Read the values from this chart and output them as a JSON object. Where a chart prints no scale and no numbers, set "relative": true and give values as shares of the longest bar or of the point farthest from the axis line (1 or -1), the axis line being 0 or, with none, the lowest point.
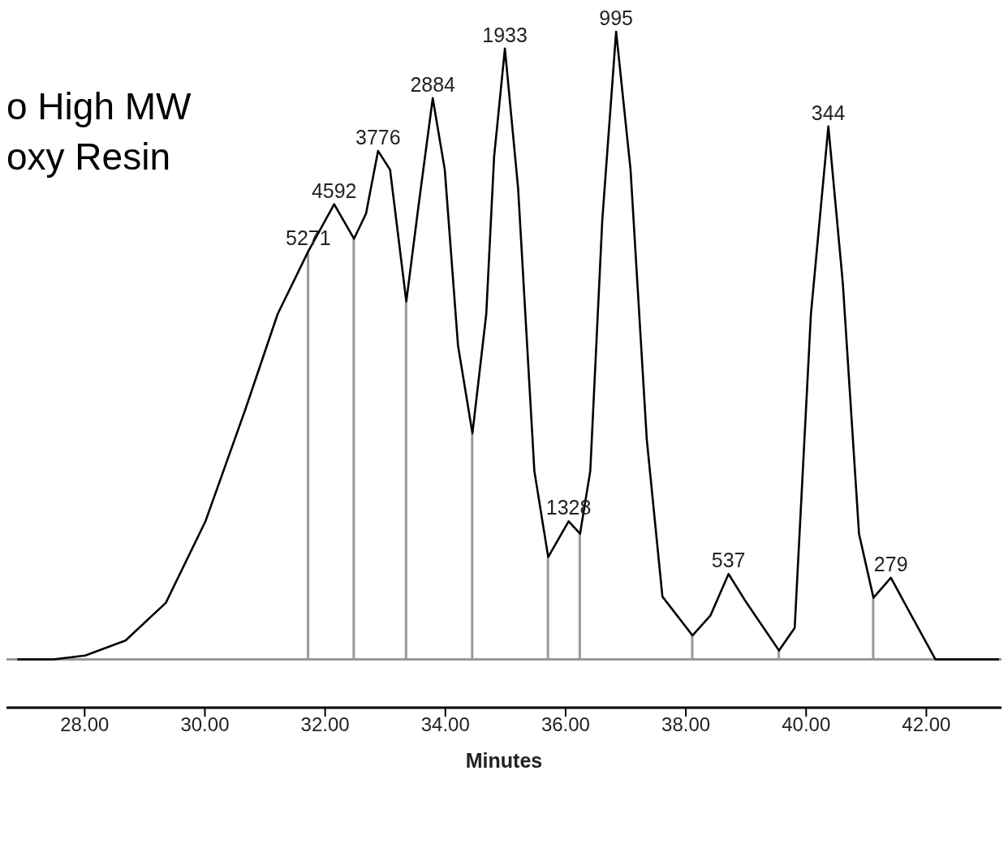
{
  "chart_data": {
    "type": "line",
    "title": "o High MW\noxy Resin",
    "xlabel": "Minutes",
    "relative": true,
    "tick_labels": "x",
    "xlim": [
      26.7,
      43.25
    ],
    "xticks": [
      {
        "value": 28,
        "label": "28.00"
      },
      {
        "value": 30,
        "label": "30.00"
      },
      {
        "value": 32,
        "label": "32.00"
      },
      {
        "value": 34,
        "label": "34.00"
      },
      {
        "value": 36,
        "label": "36.00"
      },
      {
        "value": 38,
        "label": "38.00"
      },
      {
        "value": 40,
        "label": "40.00"
      },
      {
        "value": 42,
        "label": "42.00"
      }
    ],
    "series": [
      {
        "color": "#000000",
        "x": [
          26.88,
          27.48,
          28.01,
          28.68,
          29.35,
          30.01,
          30.68,
          31.21,
          31.72,
          32.15,
          32.48,
          32.68,
          32.88,
          33.08,
          33.35,
          33.55,
          33.79,
          33.99,
          34.21,
          34.45,
          34.68,
          34.81,
          34.99,
          35.21,
          35.48,
          35.71,
          36.05,
          36.24,
          36.41,
          36.61,
          36.84,
          37.08,
          37.35,
          37.61,
          38.11,
          38.41,
          38.71,
          39.01,
          39.55,
          39.81,
          40.08,
          40.37,
          40.61,
          40.88,
          41.12,
          41.41,
          41.75,
          42.15,
          43.21
        ],
        "values": [
          0,
          0,
          0.006,
          0.03,
          0.09,
          0.22,
          0.4,
          0.55,
          0.65,
          0.725,
          0.67,
          0.71,
          0.81,
          0.78,
          0.57,
          0.72,
          0.894,
          0.78,
          0.5,
          0.36,
          0.55,
          0.8,
          0.973,
          0.75,
          0.3,
          0.163,
          0.22,
          0.2,
          0.3,
          0.7,
          1,
          0.78,
          0.35,
          0.1,
          0.038,
          0.07,
          0.136,
          0.09,
          0.014,
          0.05,
          0.55,
          0.849,
          0.6,
          0.2,
          0.098,
          0.13,
          0.07,
          0,
          0
        ]
      },
      {
        "type": "bar",
        "color": "#999999",
        "x": [
          31.72,
          32.48,
          33.35,
          34.45,
          35.71,
          36.24,
          38.11,
          39.55,
          41.12
        ],
        "values": [
          0.65,
          0.67,
          0.57,
          0.36,
          0.163,
          0.2,
          0.038,
          0.014,
          0.098
        ]
      }
    ],
    "annotations": [
      {
        "text": "5271",
        "x": 31.72,
        "y": 0.65
      },
      {
        "text": "4592",
        "x": 32.15,
        "y": 0.725
      },
      {
        "text": "3776",
        "x": 32.88,
        "y": 0.81
      },
      {
        "text": "2884",
        "x": 33.79,
        "y": 0.894
      },
      {
        "text": "1933",
        "x": 34.99,
        "y": 0.973
      },
      {
        "text": "1328",
        "x": 36.05,
        "y": 0.22
      },
      {
        "text": "995",
        "x": 36.84,
        "y": 1
      },
      {
        "text": "537",
        "x": 38.71,
        "y": 0.136
      },
      {
        "text": "344",
        "x": 40.37,
        "y": 0.849
      },
      {
        "text": "279",
        "x": 41.41,
        "y": 0.13
      }
    ]
  }
}
